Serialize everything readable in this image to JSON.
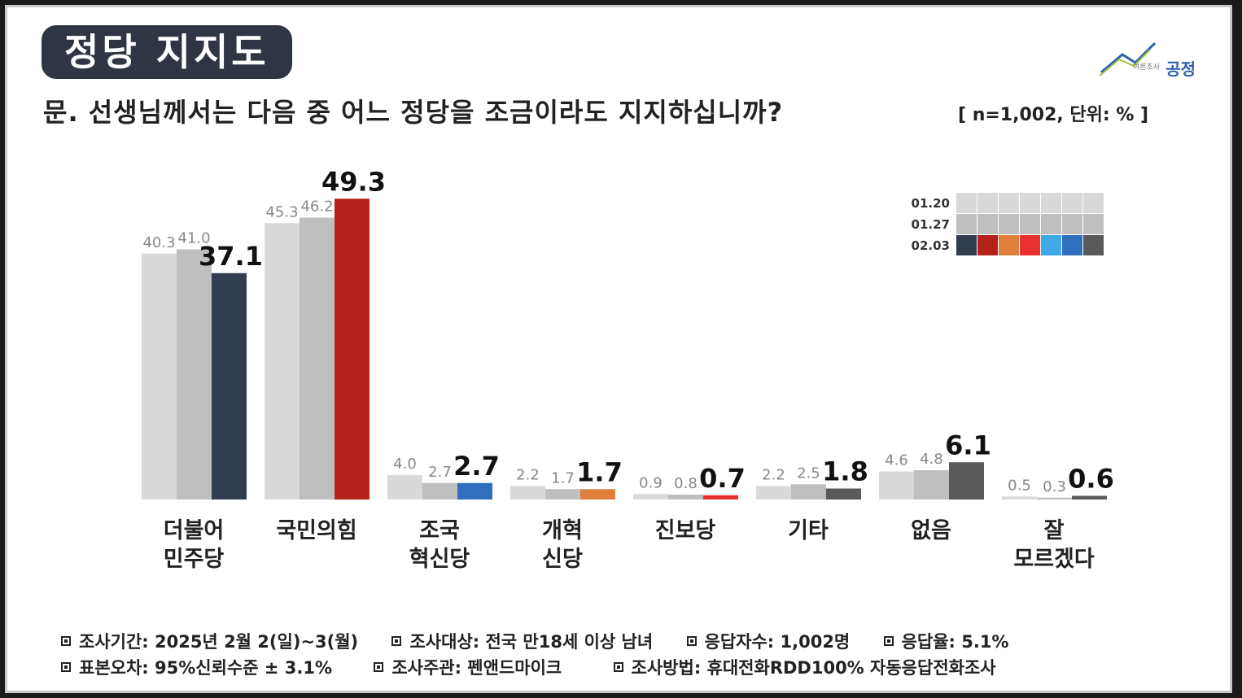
{
  "header": {
    "title": "정당 지지도",
    "question": "문. 선생님께서는 다음 중 어느 정당을 조금이라도 지지하십니까?",
    "sample_note": "[ n=1,002, 단위: % ]",
    "logo_text": "공정",
    "logo_sub": "여론조사"
  },
  "chart_data": {
    "type": "bar",
    "categories": [
      "더불어\n민주당",
      "국민의힘",
      "조국\n혁신당",
      "개혁\n신당",
      "진보당",
      "기타",
      "없음",
      "잘\n모르겠다"
    ],
    "series": [
      {
        "name": "01.20",
        "values": [
          40.3,
          45.3,
          4.0,
          2.2,
          0.9,
          2.2,
          4.6,
          0.5
        ]
      },
      {
        "name": "01.27",
        "values": [
          41.0,
          46.2,
          2.7,
          1.7,
          0.8,
          2.5,
          4.8,
          0.3
        ]
      },
      {
        "name": "02.03",
        "values": [
          37.1,
          49.3,
          2.7,
          1.7,
          0.7,
          1.8,
          6.1,
          0.6
        ]
      }
    ],
    "colors": {
      "01.20": "#d9d9d9",
      "01.27": "#bfbfbf",
      "02.03": [
        "#323c4f",
        "#b3211a",
        "#2f6fbd",
        "#e07f3c",
        "#e8312f",
        "#595959",
        "#595959",
        "#595959"
      ]
    },
    "legend_swatches_0203": [
      "#323c4f",
      "#b3211a",
      "#e07f3c",
      "#e8312f",
      "#3fa9e8",
      "#2f6fbd",
      "#595959"
    ],
    "ylim": [
      0,
      50
    ],
    "legend": "top-right"
  },
  "footer": {
    "line1": [
      "조사기간: 2025년 2월 2(일)~3(월)",
      "조사대상: 전국 만18세 이상 남녀",
      "응답자수: 1,002명",
      "응답율: 5.1%"
    ],
    "line2": [
      "표본오차: 95%신뢰수준 ± 3.1%",
      "조사주관: 펜앤드마이크",
      "조사방법: 휴대전화RDD100% 자동응답전화조사"
    ]
  }
}
